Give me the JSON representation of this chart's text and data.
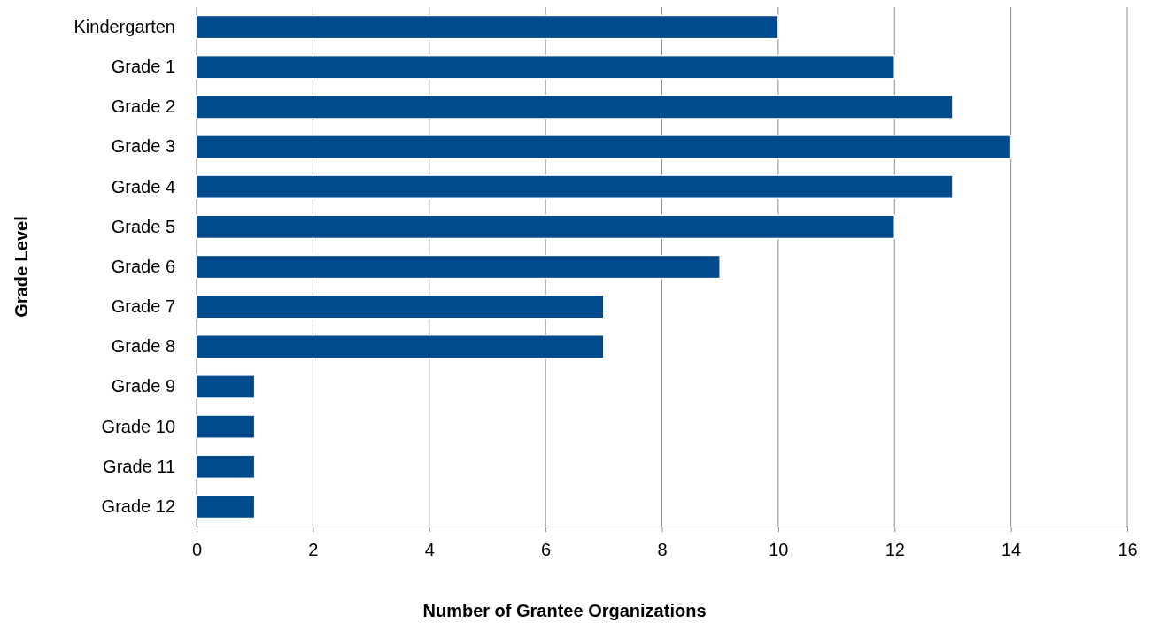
{
  "chart_data": {
    "type": "bar",
    "orientation": "horizontal",
    "xlabel": "Number of Grantee Organizations",
    "ylabel": "Grade Level",
    "categories": [
      "Kindergarten",
      "Grade 1",
      "Grade 2",
      "Grade 3",
      "Grade 4",
      "Grade 5",
      "Grade 6",
      "Grade 7",
      "Grade 8",
      "Grade 9",
      "Grade 10",
      "Grade 11",
      "Grade 12"
    ],
    "values": [
      10,
      12,
      13,
      14,
      13,
      12,
      9,
      7,
      7,
      1,
      1,
      1,
      1
    ],
    "color": "#004b8d",
    "xlim": [
      0,
      16
    ],
    "xticks": [
      0,
      2,
      4,
      6,
      8,
      10,
      12,
      14,
      16
    ],
    "grid": "x"
  }
}
